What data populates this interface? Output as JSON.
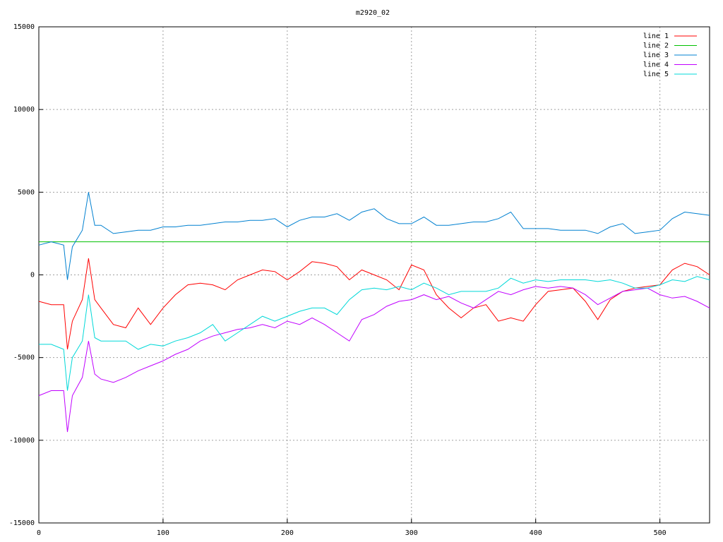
{
  "chart_data": {
    "type": "line",
    "title": "m2920_02",
    "x": [
      0,
      10,
      20,
      23,
      27,
      35,
      40,
      45,
      50,
      60,
      70,
      80,
      90,
      100,
      110,
      120,
      130,
      140,
      150,
      160,
      170,
      180,
      190,
      200,
      210,
      220,
      230,
      240,
      250,
      260,
      270,
      280,
      290,
      300,
      310,
      320,
      330,
      340,
      350,
      360,
      370,
      380,
      390,
      400,
      410,
      420,
      430,
      440,
      450,
      460,
      470,
      480,
      490,
      500,
      510,
      520,
      530,
      540
    ],
    "series": [
      {
        "name": "line 1",
        "color": "#ff0000",
        "values": [
          -1600,
          -1800,
          -1800,
          -4500,
          -2800,
          -1500,
          1000,
          -1500,
          -2000,
          -3000,
          -3200,
          -2000,
          -3000,
          -2000,
          -1200,
          -600,
          -500,
          -600,
          -900,
          -300,
          0,
          300,
          200,
          -300,
          200,
          800,
          700,
          500,
          -300,
          300,
          0,
          -300,
          -900,
          600,
          300,
          -1200,
          -2000,
          -2600,
          -2000,
          -1800,
          -2800,
          -2600,
          -2800,
          -1800,
          -1000,
          -900,
          -800,
          -1600,
          -2700,
          -1500,
          -1000,
          -800,
          -700,
          -600,
          300,
          700,
          500,
          0
        ]
      },
      {
        "name": "line 2",
        "color": "#00c000",
        "values": [
          2000,
          2000,
          2000,
          2000,
          2000,
          2000,
          2000,
          2000,
          2000,
          2000,
          2000,
          2000,
          2000,
          2000,
          2000,
          2000,
          2000,
          2000,
          2000,
          2000,
          2000,
          2000,
          2000,
          2000,
          2000,
          2000,
          2000,
          2000,
          2000,
          2000,
          2000,
          2000,
          2000,
          2000,
          2000,
          2000,
          2000,
          2000,
          2000,
          2000,
          2000,
          2000,
          2000,
          2000,
          2000,
          2000,
          2000,
          2000,
          2000,
          2000,
          2000,
          2000,
          2000,
          2000,
          2000,
          2000,
          2000,
          2000
        ]
      },
      {
        "name": "line 3",
        "color": "#0080d0",
        "values": [
          1800,
          2000,
          1800,
          -300,
          1700,
          2700,
          5000,
          3000,
          3000,
          2500,
          2600,
          2700,
          2700,
          2900,
          2900,
          3000,
          3000,
          3100,
          3200,
          3200,
          3300,
          3300,
          3400,
          2900,
          3300,
          3500,
          3500,
          3700,
          3300,
          3800,
          4000,
          3400,
          3100,
          3100,
          3500,
          3000,
          3000,
          3100,
          3200,
          3200,
          3400,
          3800,
          2800,
          2800,
          2800,
          2700,
          2700,
          2700,
          2500,
          2900,
          3100,
          2500,
          2600,
          2700,
          3400,
          3800,
          3700,
          3600
        ]
      },
      {
        "name": "line 4",
        "color": "#c000ff",
        "values": [
          -7300,
          -7000,
          -7000,
          -9500,
          -7300,
          -6200,
          -4000,
          -6000,
          -6300,
          -6500,
          -6200,
          -5800,
          -5500,
          -5200,
          -4800,
          -4500,
          -4000,
          -3700,
          -3500,
          -3300,
          -3200,
          -3000,
          -3200,
          -2800,
          -3000,
          -2600,
          -3000,
          -3500,
          -4000,
          -2700,
          -2400,
          -1900,
          -1600,
          -1500,
          -1200,
          -1500,
          -1300,
          -1700,
          -2000,
          -1500,
          -1000,
          -1200,
          -900,
          -700,
          -800,
          -700,
          -800,
          -1200,
          -1800,
          -1400,
          -1000,
          -900,
          -800,
          -1200,
          -1400,
          -1300,
          -1600,
          -2000
        ]
      },
      {
        "name": "line 5",
        "color": "#00d8d8",
        "values": [
          -4200,
          -4200,
          -4500,
          -7000,
          -5000,
          -4000,
          -1200,
          -3800,
          -4000,
          -4000,
          -4000,
          -4500,
          -4200,
          -4300,
          -4000,
          -3800,
          -3500,
          -3000,
          -4000,
          -3500,
          -3000,
          -2500,
          -2800,
          -2500,
          -2200,
          -2000,
          -2000,
          -2400,
          -1500,
          -900,
          -800,
          -900,
          -700,
          -900,
          -500,
          -800,
          -1200,
          -1000,
          -1000,
          -1000,
          -800,
          -200,
          -500,
          -300,
          -400,
          -300,
          -300,
          -300,
          -400,
          -300,
          -500,
          -800,
          -800,
          -600,
          -300,
          -400,
          -100,
          -300
        ]
      }
    ],
    "xlim": [
      0,
      540
    ],
    "ylim": [
      -15000,
      15000
    ],
    "xticks": [
      0,
      100,
      200,
      300,
      400,
      500
    ],
    "yticks": [
      -15000,
      -10000,
      -5000,
      0,
      5000,
      10000,
      15000
    ],
    "grid": true,
    "legend": "top-right"
  }
}
